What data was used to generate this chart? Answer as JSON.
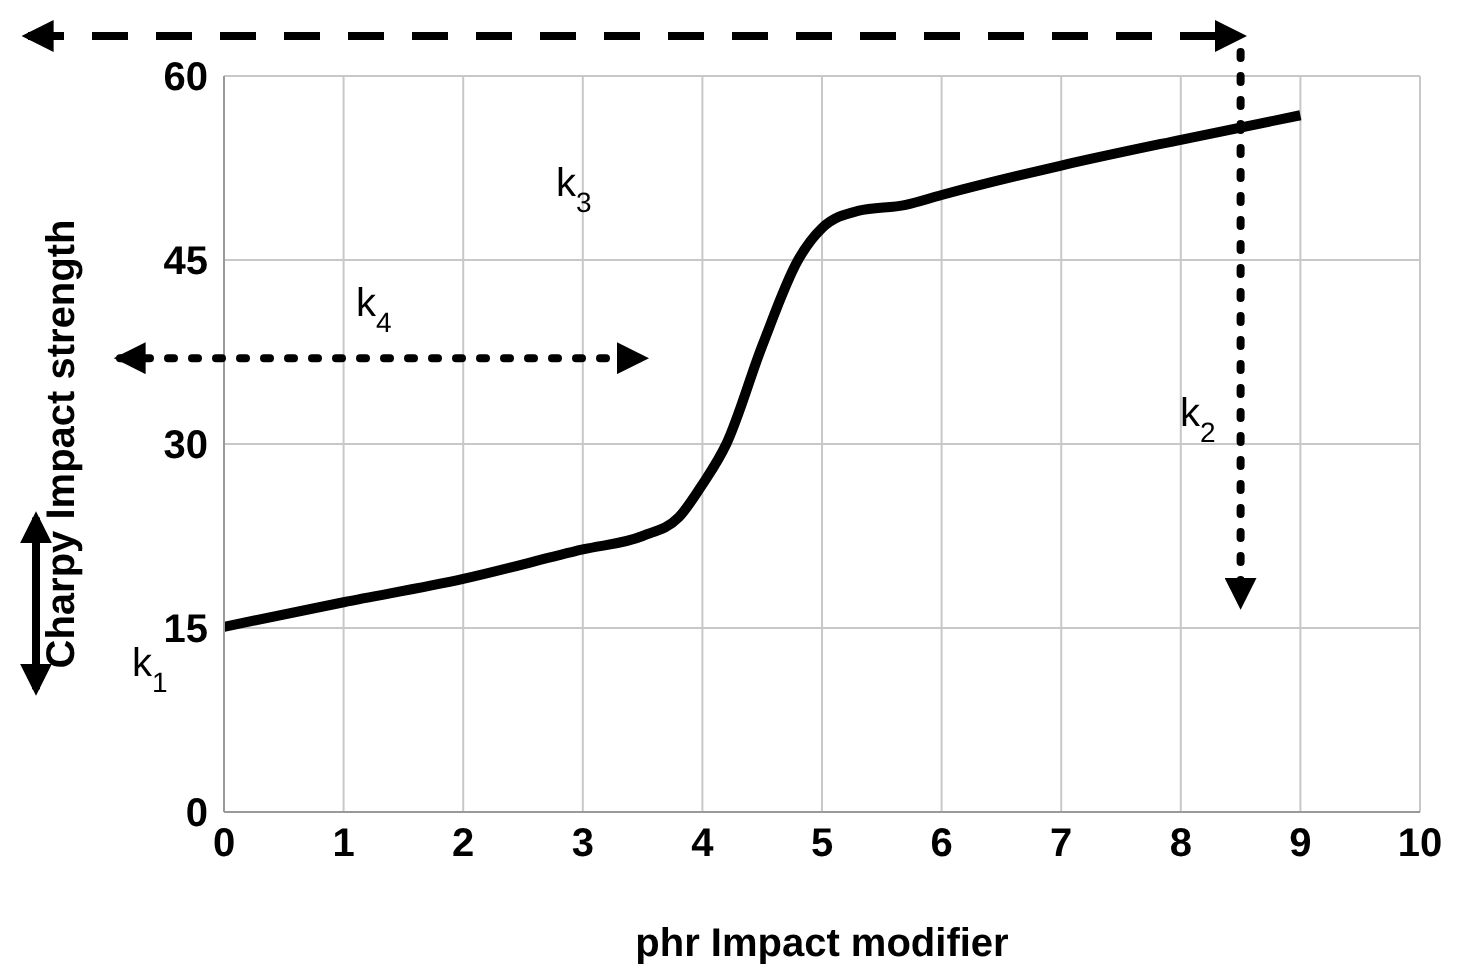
{
  "chart_data": {
    "type": "line",
    "xlabel": "phr Impact modifier",
    "ylabel": "Charpy Impact strength",
    "x": [
      0,
      1,
      2,
      3,
      3.5,
      3.8,
      4,
      4.2,
      4.5,
      4.8,
      5,
      5.3,
      5.7,
      6,
      7,
      8,
      9
    ],
    "series": [
      {
        "color": "#000000",
        "values": [
          15.1,
          17.1,
          19,
          21.4,
          22.5,
          24,
          26.7,
          30,
          38,
          45,
          47.6,
          49,
          49.5,
          50.3,
          52.7,
          54.8,
          56.8
        ]
      }
    ],
    "xlim": [
      0,
      10
    ],
    "xticks": [
      0,
      1,
      2,
      3,
      4,
      5,
      6,
      7,
      8,
      9,
      10
    ],
    "ylim": [
      0,
      60
    ],
    "yticks": [
      0,
      15,
      30,
      45,
      60
    ],
    "grid": true,
    "marker": "none",
    "line_style": "solid",
    "annotations": [
      "k$_{1}$",
      "k$_{3}$",
      "k$_{4}$",
      "k$_{2}$"
    ]
  }
}
